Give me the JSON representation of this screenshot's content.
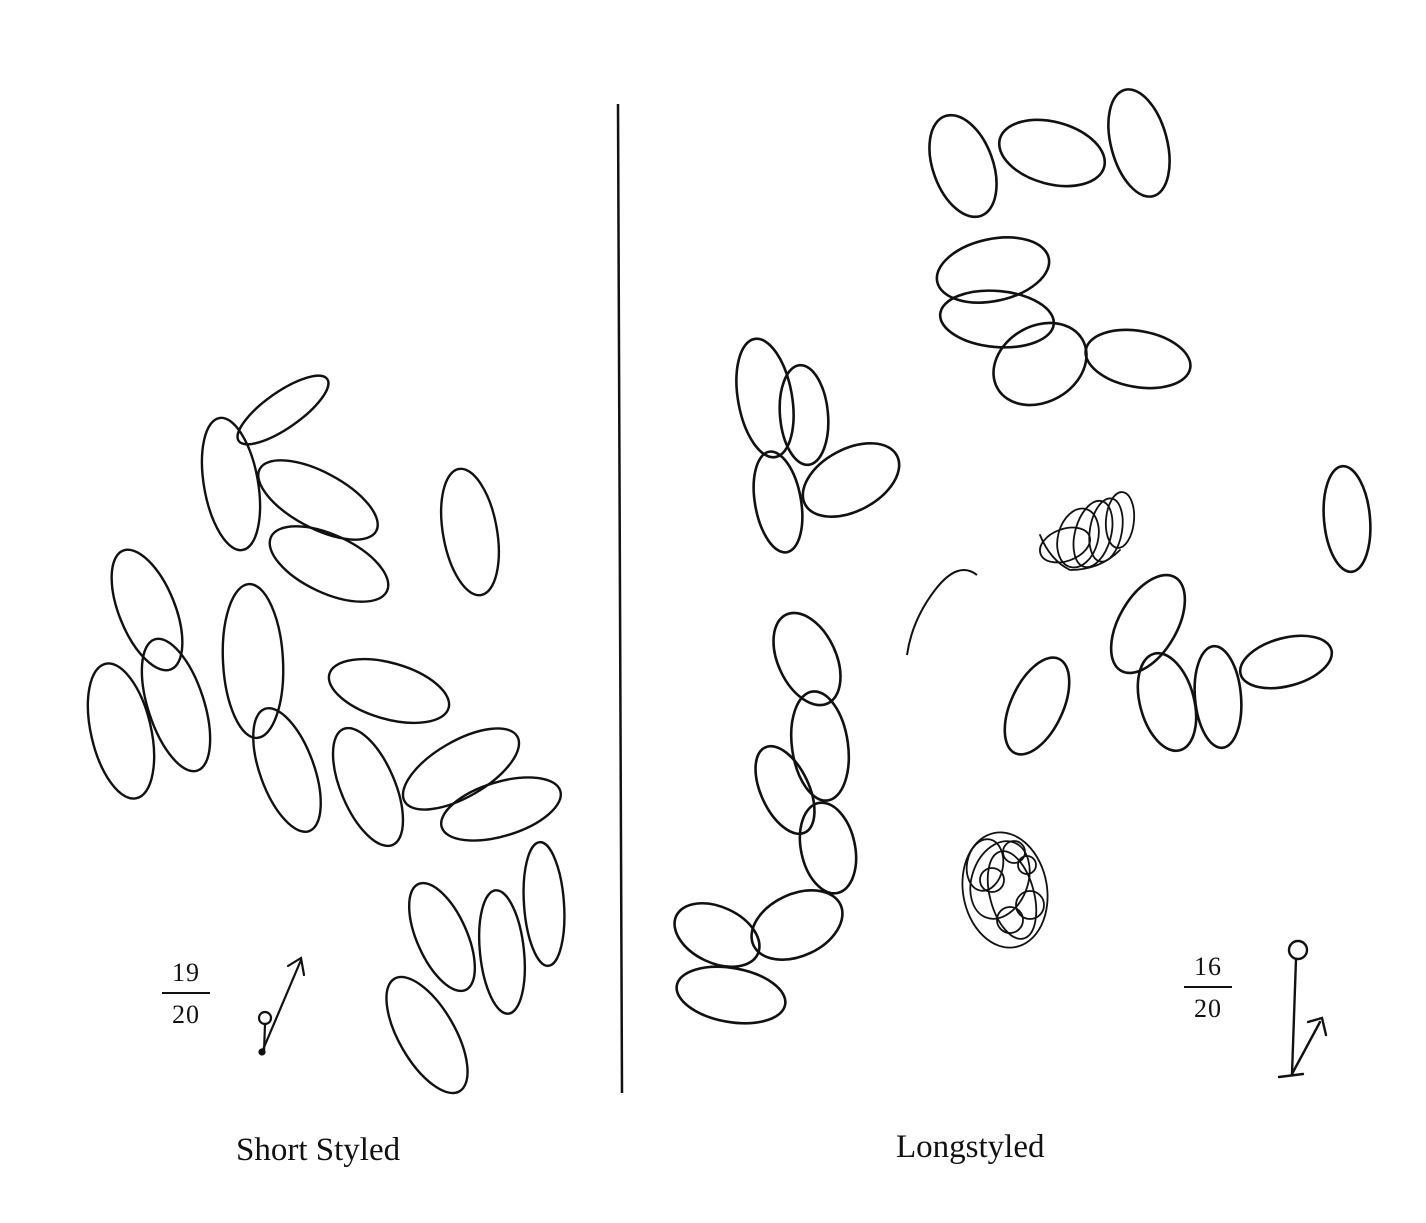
{
  "panels": [
    {
      "caption": "Short Styled",
      "ratio_numerator": "19",
      "ratio_denominator": "20",
      "style_type": "short",
      "grain_count_drawn": 22
    },
    {
      "caption": "Longstyled",
      "ratio_numerator": "16",
      "ratio_denominator": "20",
      "style_type": "long",
      "grain_count_drawn": 26
    }
  ],
  "colors": {
    "ink": "#111111",
    "background": "#ffffff"
  }
}
